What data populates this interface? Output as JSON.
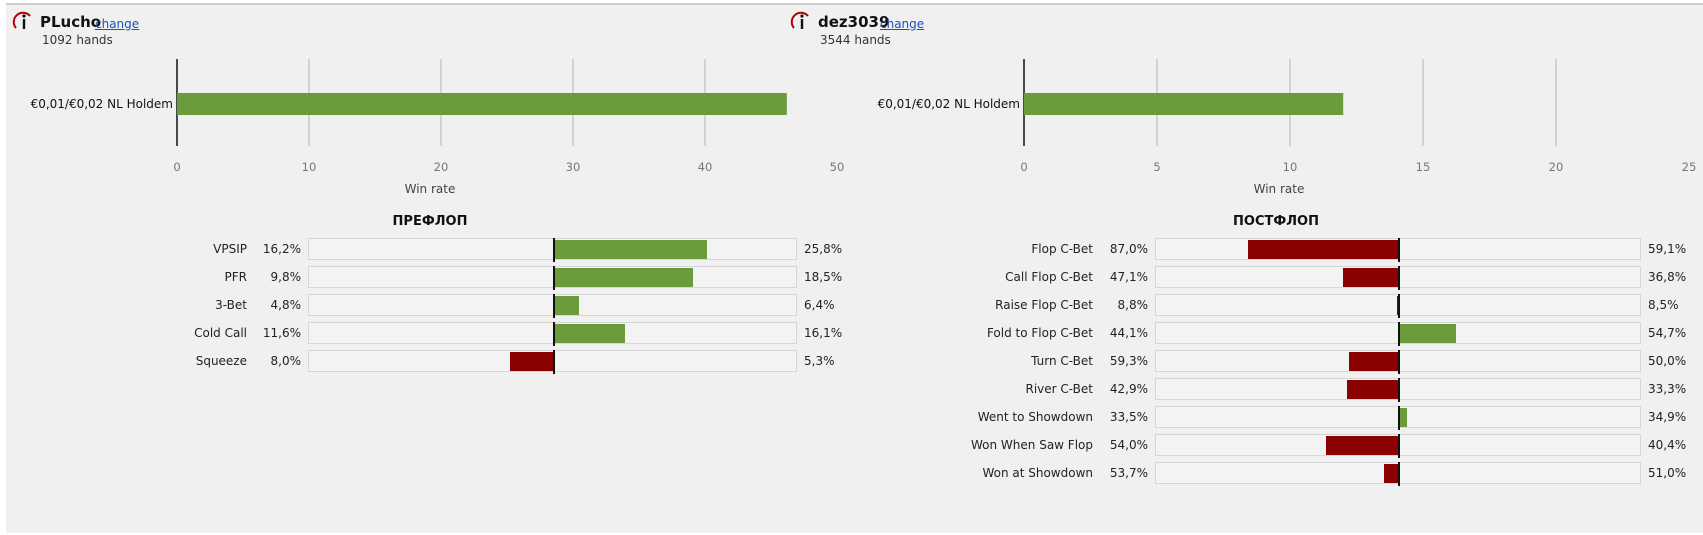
{
  "colors": {
    "positive": "#6b9b3a",
    "negative": "#8b0000"
  },
  "players": [
    {
      "name": "PLucho",
      "change_label": "change",
      "hands": "1092 hands",
      "icon": "hud-logo-icon",
      "winrate_chart": {
        "type": "bar",
        "orientation": "horizontal",
        "categories": [
          "€0,01/€0,02 NL Holdem"
        ],
        "values": [
          46.2
        ],
        "xlabel": "Win rate",
        "xlim": [
          0,
          50
        ],
        "ticks": [
          "0",
          "10",
          "20",
          "30",
          "40",
          "50"
        ]
      },
      "section_title": "ПРЕФЛОП",
      "stats": [
        {
          "label": "VPSIP",
          "player": "16,2%",
          "opponent": "25,8%",
          "diff": 9.6
        },
        {
          "label": "PFR",
          "player": "9,8%",
          "opponent": "18,5%",
          "diff": 8.7
        },
        {
          "label": "3-Bet",
          "player": "4,8%",
          "opponent": "6,4%",
          "diff": 1.6
        },
        {
          "label": "Cold Call",
          "player": "11,6%",
          "opponent": "16,1%",
          "diff": 4.5
        },
        {
          "label": "Squeeze",
          "player": "8,0%",
          "opponent": "5,3%",
          "diff": -2.7
        }
      ],
      "stat_scale": 15.3
    },
    {
      "name": "dez3039",
      "change_label": "change",
      "hands": "3544 hands",
      "icon": "hud-logo-icon",
      "winrate_chart": {
        "type": "bar",
        "orientation": "horizontal",
        "categories": [
          "€0,01/€0,02 NL Holdem"
        ],
        "values": [
          12.0
        ],
        "xlabel": "Win rate",
        "xlim": [
          0,
          25
        ],
        "ticks": [
          "0",
          "5",
          "10",
          "15",
          "20",
          "25"
        ]
      },
      "section_title": "ПОСТФЛОП",
      "stats": [
        {
          "label": "Flop C-Bet",
          "player": "87,0%",
          "opponent": "59,1%",
          "diff": -27.9
        },
        {
          "label": "Call Flop C-Bet",
          "player": "47,1%",
          "opponent": "36,8%",
          "diff": -10.3
        },
        {
          "label": "Raise Flop C-Bet",
          "player": "8,8%",
          "opponent": "8,5%",
          "diff": -0.3
        },
        {
          "label": "Fold to Flop C-Bet",
          "player": "44,1%",
          "opponent": "54,7%",
          "diff": 10.6
        },
        {
          "label": "Turn C-Bet",
          "player": "59,3%",
          "opponent": "50,0%",
          "diff": -9.3
        },
        {
          "label": "River C-Bet",
          "player": "42,9%",
          "opponent": "33,3%",
          "diff": -9.6
        },
        {
          "label": "Went to Showdown",
          "player": "33,5%",
          "opponent": "34,9%",
          "diff": 1.4
        },
        {
          "label": "Won When Saw Flop",
          "player": "54,0%",
          "opponent": "40,4%",
          "diff": -13.6
        },
        {
          "label": "Won at Showdown",
          "player": "53,7%",
          "opponent": "51,0%",
          "diff": -2.7
        }
      ],
      "stat_scale": 45
    }
  ],
  "chart_data": [
    {
      "type": "bar",
      "categories": [
        "€0,01/€0,02 NL Holdem"
      ],
      "values": [
        46.2
      ],
      "xlabel": "Win rate",
      "xlim": [
        0,
        50
      ]
    },
    {
      "type": "bar",
      "categories": [
        "€0,01/€0,02 NL Holdem"
      ],
      "values": [
        12.0
      ],
      "xlabel": "Win rate",
      "xlim": [
        0,
        25
      ]
    }
  ]
}
